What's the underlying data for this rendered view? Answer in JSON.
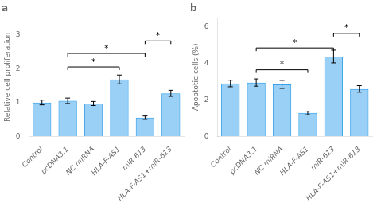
{
  "chart_data": [
    {
      "type": "bar",
      "title": "a",
      "ylabel": "Relative cell proliferation",
      "categories": [
        "Control",
        "pcDNA3.1",
        "NC miRNA",
        "HLA-F-AS1",
        "miR-613",
        "HLA-F-AS1+miR-613"
      ],
      "values": [
        1.0,
        1.05,
        0.97,
        1.68,
        0.55,
        1.27
      ],
      "errors": [
        0.07,
        0.08,
        0.06,
        0.13,
        0.05,
        0.09
      ],
      "ylim": [
        0,
        3.5
      ],
      "yticks": [
        0,
        1,
        2,
        3
      ],
      "grid": false,
      "significance": [
        {
          "x1": "pcDNA3.1",
          "x2": "HLA-F-AS1",
          "y": 2.05,
          "label": "*"
        },
        {
          "x1": "pcDNA3.1",
          "x2": "miR-613",
          "y": 2.45,
          "label": "*"
        },
        {
          "x1": "miR-613",
          "x2": "HLA-F-AS1+miR-613",
          "y": 2.82,
          "label": "*"
        }
      ]
    },
    {
      "type": "bar",
      "title": "b",
      "ylabel": "Apoptotic cells (%)",
      "categories": [
        "Control",
        "pcDNA3.1",
        "NC miRNA",
        "HLA-F-AS1",
        "miR-613",
        "HLA-F-AS1+miR-613"
      ],
      "values": [
        2.9,
        2.95,
        2.85,
        1.28,
        4.38,
        2.6
      ],
      "errors": [
        0.18,
        0.2,
        0.22,
        0.1,
        0.35,
        0.18
      ],
      "ylim": [
        0,
        6.5
      ],
      "yticks": [
        0,
        2,
        4,
        6
      ],
      "grid": false,
      "significance": [
        {
          "x1": "pcDNA3.1",
          "x2": "HLA-F-AS1",
          "y": 3.65,
          "label": "*"
        },
        {
          "x1": "pcDNA3.1",
          "x2": "miR-613",
          "y": 4.85,
          "label": "*"
        },
        {
          "x1": "miR-613",
          "x2": "HLA-F-AS1+miR-613",
          "y": 5.65,
          "label": "*"
        }
      ]
    }
  ]
}
